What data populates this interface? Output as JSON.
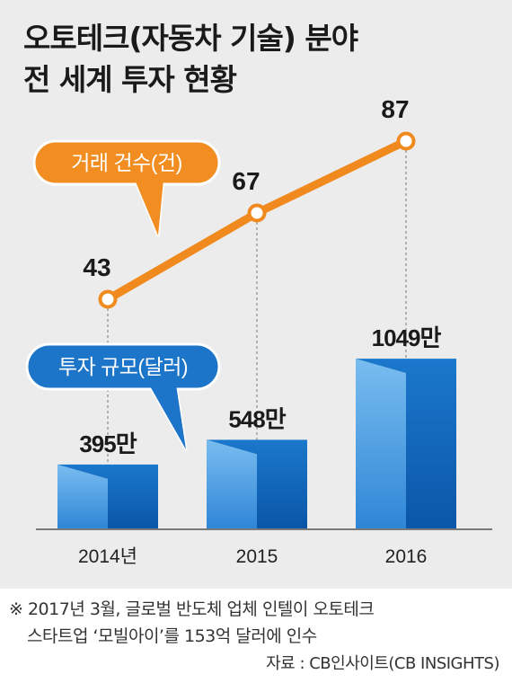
{
  "title_lines": [
    "오토테크(자동차 기술) 분야",
    "전 세계 투자 현황"
  ],
  "chart_data": {
    "type": "bar+line",
    "categories": [
      "2014년",
      "2015",
      "2016"
    ],
    "series": [
      {
        "name": "투자 규모(달러)",
        "type": "bar",
        "values": [
          395,
          548,
          1049
        ],
        "value_labels": [
          "395만",
          "548만",
          "1049만"
        ]
      },
      {
        "name": "거래 건수(건)",
        "type": "line",
        "values": [
          43,
          67,
          87
        ],
        "value_labels": [
          "43",
          "67",
          "87"
        ]
      }
    ],
    "grid": false,
    "colors": {
      "bar_light": "#4d9fe0",
      "bar_dark": "#1168bf",
      "line": "#f08a1e",
      "axis": "#555555"
    }
  },
  "footer": {
    "note_line1": "※ 2017년 3월, 글로벌 반도체 업체 인텔이 오토테크",
    "note_line2": "스타트업 ‘모빌아이’를 153억 달러에 인수",
    "source": "자료 : CB인사이트(CB INSIGHTS)"
  }
}
